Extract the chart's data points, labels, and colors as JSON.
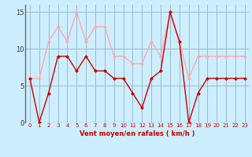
{
  "x": [
    0,
    1,
    2,
    3,
    4,
    5,
    6,
    7,
    8,
    9,
    10,
    11,
    12,
    13,
    14,
    15,
    16,
    17,
    18,
    19,
    20,
    21,
    22,
    23
  ],
  "wind_avg": [
    6,
    0,
    4,
    9,
    9,
    7,
    9,
    7,
    7,
    6,
    6,
    4,
    2,
    6,
    7,
    15,
    11,
    0,
    4,
    6,
    6,
    6,
    6,
    6
  ],
  "wind_gust": [
    6,
    6,
    11,
    13,
    11,
    15,
    11,
    13,
    13,
    9,
    9,
    8,
    8,
    11,
    9,
    15,
    11,
    6,
    9,
    9,
    9,
    9,
    9,
    9
  ],
  "avg_color": "#cc0000",
  "gust_color": "#ffaaaa",
  "bg_color": "#cceeff",
  "grid_color": "#99bbcc",
  "xlabel": "Vent moyen/en rafales ( km/h )",
  "xlabel_color": "#cc0000",
  "ylim": [
    0,
    16
  ],
  "yticks": [
    0,
    5,
    10,
    15
  ],
  "xticks": [
    0,
    1,
    2,
    3,
    4,
    5,
    6,
    7,
    8,
    9,
    10,
    11,
    12,
    13,
    14,
    15,
    16,
    17,
    18,
    19,
    20,
    21,
    22,
    23
  ],
  "marker": "D",
  "markersize": 2.5,
  "linewidth": 1.0
}
